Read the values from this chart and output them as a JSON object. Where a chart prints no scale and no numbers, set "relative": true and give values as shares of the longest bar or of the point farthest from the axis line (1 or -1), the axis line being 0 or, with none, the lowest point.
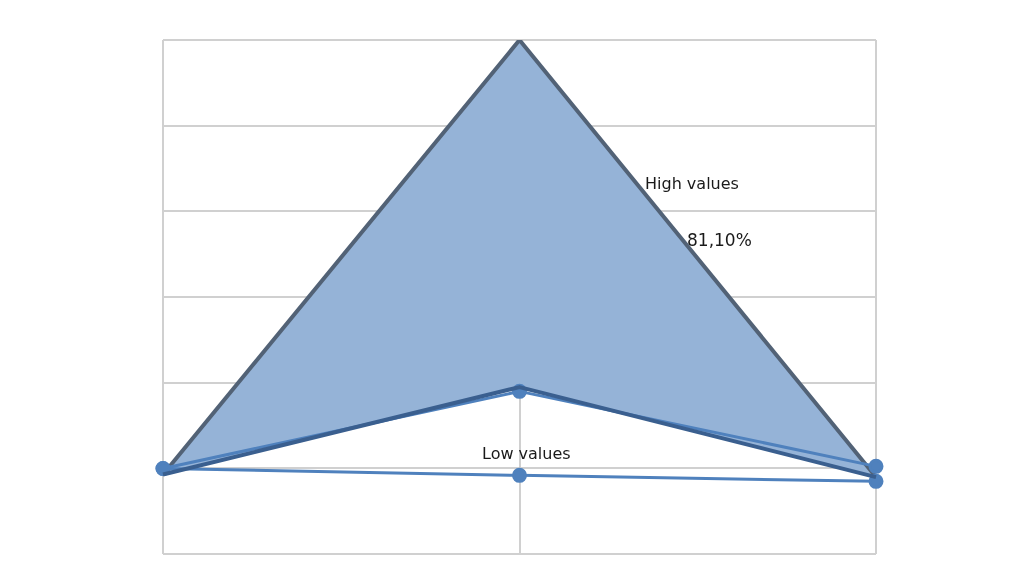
{
  "chart_data": {
    "type": "line",
    "relative": true,
    "grid": true,
    "marker": "circle",
    "categories": [
      null,
      null,
      null
    ],
    "series": [
      {
        "type": "area",
        "color": "#95b3d7",
        "marker": "none",
        "values": [
          -0.014,
          1,
          -0.02
        ]
      },
      {
        "type": "line",
        "color": "#3a5f8f",
        "marker": "none",
        "values": [
          -0.014,
          0.19,
          -0.02
        ]
      },
      {
        "type": "line",
        "color": "#4f81bd",
        "values": [
          0,
          0.18,
          0.005
        ]
      },
      {
        "type": "line",
        "color": "#4f81bd",
        "values": [
          0,
          -0.016,
          -0.03
        ]
      }
    ],
    "annotations": [
      "High values",
      "81,10%",
      "Low values"
    ]
  }
}
